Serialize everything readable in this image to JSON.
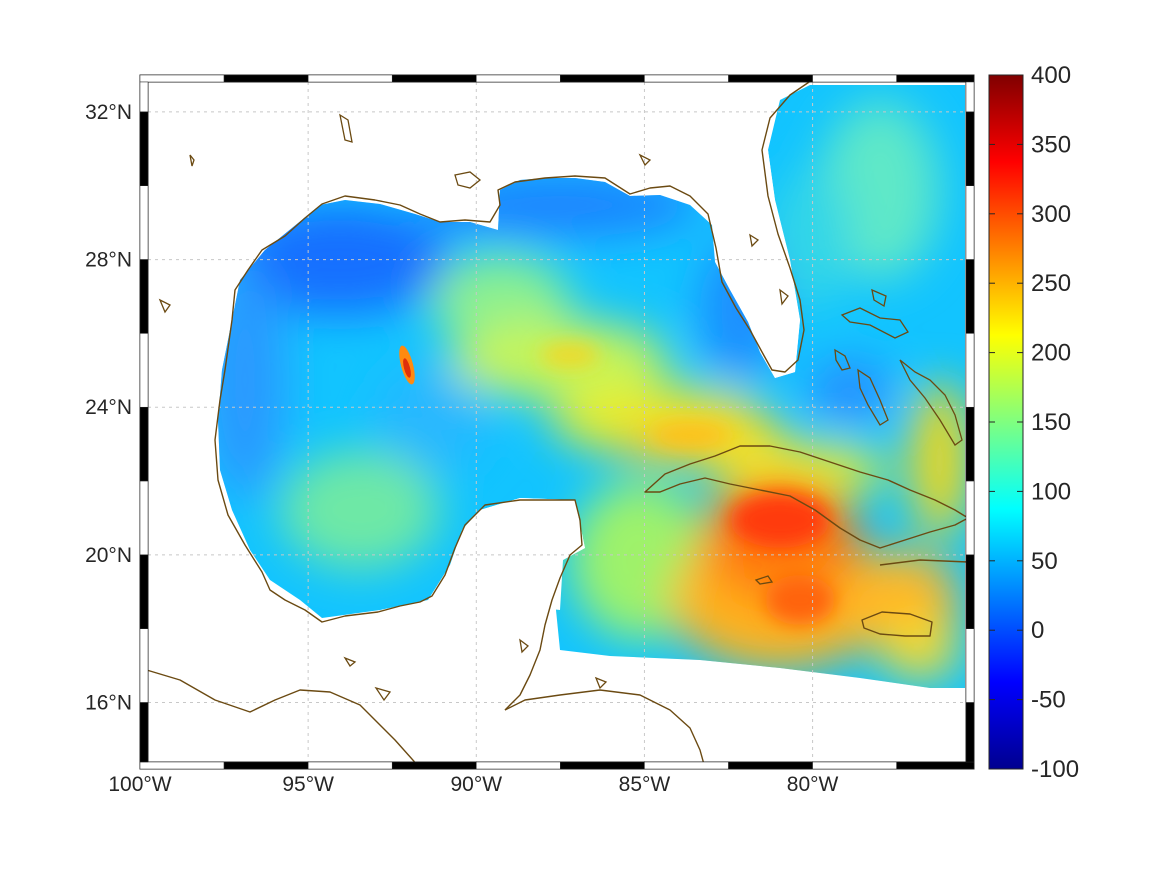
{
  "map": {
    "lon_range": [
      -100,
      -75.2
    ],
    "lat_range": [
      14.2,
      33
    ],
    "lon_ticks": [
      {
        "value": -100,
        "label": "100°W"
      },
      {
        "value": -95,
        "label": "95°W"
      },
      {
        "value": -90,
        "label": "90°W"
      },
      {
        "value": -85,
        "label": "85°W"
      },
      {
        "value": -80,
        "label": "80°W"
      }
    ],
    "lat_ticks": [
      {
        "value": 16,
        "label": "16°N"
      },
      {
        "value": 20,
        "label": "20°N"
      },
      {
        "value": 24,
        "label": "24°N"
      },
      {
        "value": 28,
        "label": "28°N"
      },
      {
        "value": 32,
        "label": "32°N"
      }
    ],
    "grid": true,
    "frame": "black-white-alternating",
    "coast_color": "#6b4a12",
    "colormap": "jet"
  },
  "colorbar": {
    "min": -100,
    "max": 400,
    "ticks": [
      {
        "value": 400,
        "label": "400"
      },
      {
        "value": 350,
        "label": "350"
      },
      {
        "value": 300,
        "label": "300"
      },
      {
        "value": 250,
        "label": "250"
      },
      {
        "value": 200,
        "label": "200"
      },
      {
        "value": 150,
        "label": "150"
      },
      {
        "value": 100,
        "label": "100"
      },
      {
        "value": 50,
        "label": "50"
      },
      {
        "value": 0,
        "label": "0"
      },
      {
        "value": -50,
        "label": "-50"
      },
      {
        "value": -100,
        "label": "-100"
      }
    ]
  }
}
